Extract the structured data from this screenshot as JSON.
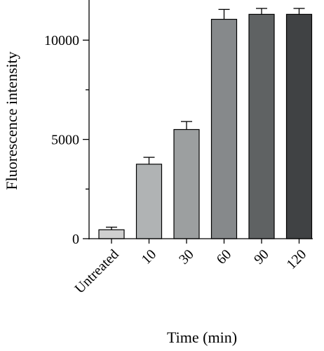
{
  "chart_data": {
    "type": "bar",
    "categories": [
      "Untreated",
      "10",
      "30",
      "60",
      "90",
      "120"
    ],
    "values": [
      450,
      3750,
      5500,
      11050,
      11300,
      11300
    ],
    "errors": [
      130,
      350,
      400,
      500,
      300,
      300
    ],
    "colors": [
      "#cfcfcf",
      "#b0b3b4",
      "#9c9fa0",
      "#86898b",
      "#5f6263",
      "#404244"
    ],
    "xlabel": "Time (min)",
    "ylabel": "Fluorescence intensity",
    "ylim": [
      0,
      12000
    ],
    "yticks": [
      0,
      5000,
      10000
    ],
    "yticks_minor": [
      2500,
      7500,
      12500
    ],
    "grid": false
  }
}
